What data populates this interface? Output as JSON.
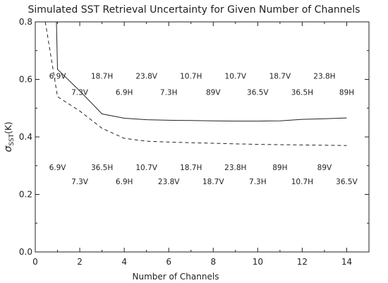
{
  "chart_data": {
    "type": "line",
    "title": "Simulated SST Retrieval Uncertainty for Given Number of Channels",
    "xlabel": "Number of Channels",
    "ylabel": {
      "symbol": "σ",
      "subscript": "SST",
      "unit": "(K)"
    },
    "xlim": [
      0,
      15
    ],
    "ylim": [
      0.0,
      0.8
    ],
    "xticks": [
      "0",
      "2",
      "4",
      "6",
      "8",
      "10",
      "12",
      "14"
    ],
    "yticks": [
      "0.0",
      "0.2",
      "0.4",
      "0.6",
      "0.8"
    ],
    "grid": false,
    "legend": null,
    "series": [
      {
        "style": "solid",
        "x": [
          1,
          2,
          3,
          4,
          5,
          6,
          7,
          8,
          9,
          10,
          11,
          12,
          13,
          14
        ],
        "y": [
          0.635,
          0.56,
          0.48,
          0.465,
          0.46,
          0.458,
          0.457,
          0.456,
          0.455,
          0.455,
          0.456,
          0.461,
          0.463,
          0.466
        ],
        "steep_from": {
          "x": 0.95,
          "y": 0.8
        }
      },
      {
        "style": "dashed",
        "x": [
          1,
          2,
          3,
          4,
          5,
          6,
          7,
          8,
          9,
          10,
          11,
          12,
          13,
          14
        ],
        "y": [
          0.54,
          0.49,
          0.43,
          0.395,
          0.385,
          0.382,
          0.38,
          0.378,
          0.376,
          0.374,
          0.373,
          0.372,
          0.371,
          0.37
        ],
        "steep_from": {
          "x": 0.45,
          "y": 0.8
        }
      }
    ],
    "annotations": [
      {
        "text": "6.9V",
        "x": 1,
        "y": 0.612
      },
      {
        "text": "18.7H",
        "x": 3,
        "y": 0.612
      },
      {
        "text": "23.8V",
        "x": 5,
        "y": 0.612
      },
      {
        "text": "10.7H",
        "x": 7,
        "y": 0.612
      },
      {
        "text": "10.7V",
        "x": 9,
        "y": 0.612
      },
      {
        "text": "18.7V",
        "x": 11,
        "y": 0.612
      },
      {
        "text": "23.8H",
        "x": 13,
        "y": 0.612
      },
      {
        "text": "7.3V",
        "x": 2,
        "y": 0.556
      },
      {
        "text": "6.9H",
        "x": 4,
        "y": 0.556
      },
      {
        "text": "7.3H",
        "x": 6,
        "y": 0.556
      },
      {
        "text": "89V",
        "x": 8,
        "y": 0.556
      },
      {
        "text": "36.5V",
        "x": 10,
        "y": 0.556
      },
      {
        "text": "36.5H",
        "x": 12,
        "y": 0.556
      },
      {
        "text": "89H",
        "x": 14,
        "y": 0.556
      },
      {
        "text": "6.9V",
        "x": 1,
        "y": 0.295
      },
      {
        "text": "36.5H",
        "x": 3,
        "y": 0.295
      },
      {
        "text": "10.7V",
        "x": 5,
        "y": 0.295
      },
      {
        "text": "18.7H",
        "x": 7,
        "y": 0.295
      },
      {
        "text": "23.8H",
        "x": 9,
        "y": 0.295
      },
      {
        "text": "89H",
        "x": 11,
        "y": 0.295
      },
      {
        "text": "89V",
        "x": 13,
        "y": 0.295
      },
      {
        "text": "7.3V",
        "x": 2,
        "y": 0.245
      },
      {
        "text": "6.9H",
        "x": 4,
        "y": 0.245
      },
      {
        "text": "23.8V",
        "x": 6,
        "y": 0.245
      },
      {
        "text": "18.7V",
        "x": 8,
        "y": 0.245
      },
      {
        "text": "7.3H",
        "x": 10,
        "y": 0.245
      },
      {
        "text": "10.7H",
        "x": 12,
        "y": 0.245
      },
      {
        "text": "36.5V",
        "x": 14,
        "y": 0.245
      }
    ]
  }
}
